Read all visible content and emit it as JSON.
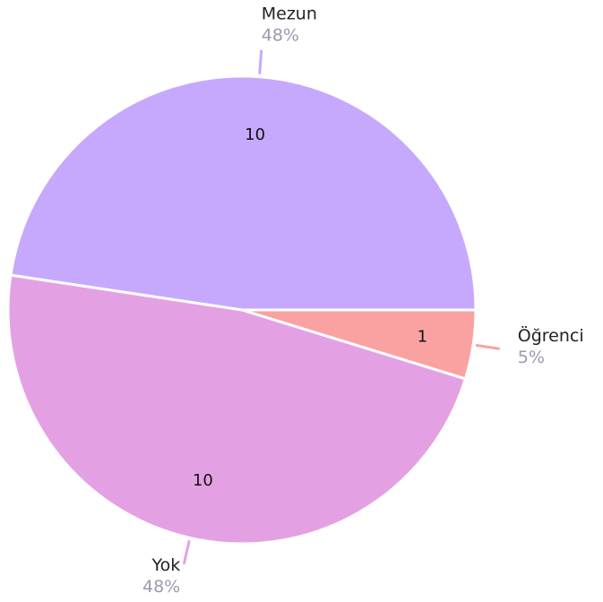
{
  "chart_data": {
    "type": "pie",
    "categories": [
      "Mezun",
      "Öğrenci",
      "Yok"
    ],
    "values": [
      10,
      1,
      10
    ],
    "colors": [
      "#c6a9fd",
      "#faa2a2",
      "#e3a1e4"
    ],
    "percentages": [
      48,
      5,
      48
    ],
    "percentage_labels": [
      "48%",
      "5%",
      "48%"
    ]
  }
}
